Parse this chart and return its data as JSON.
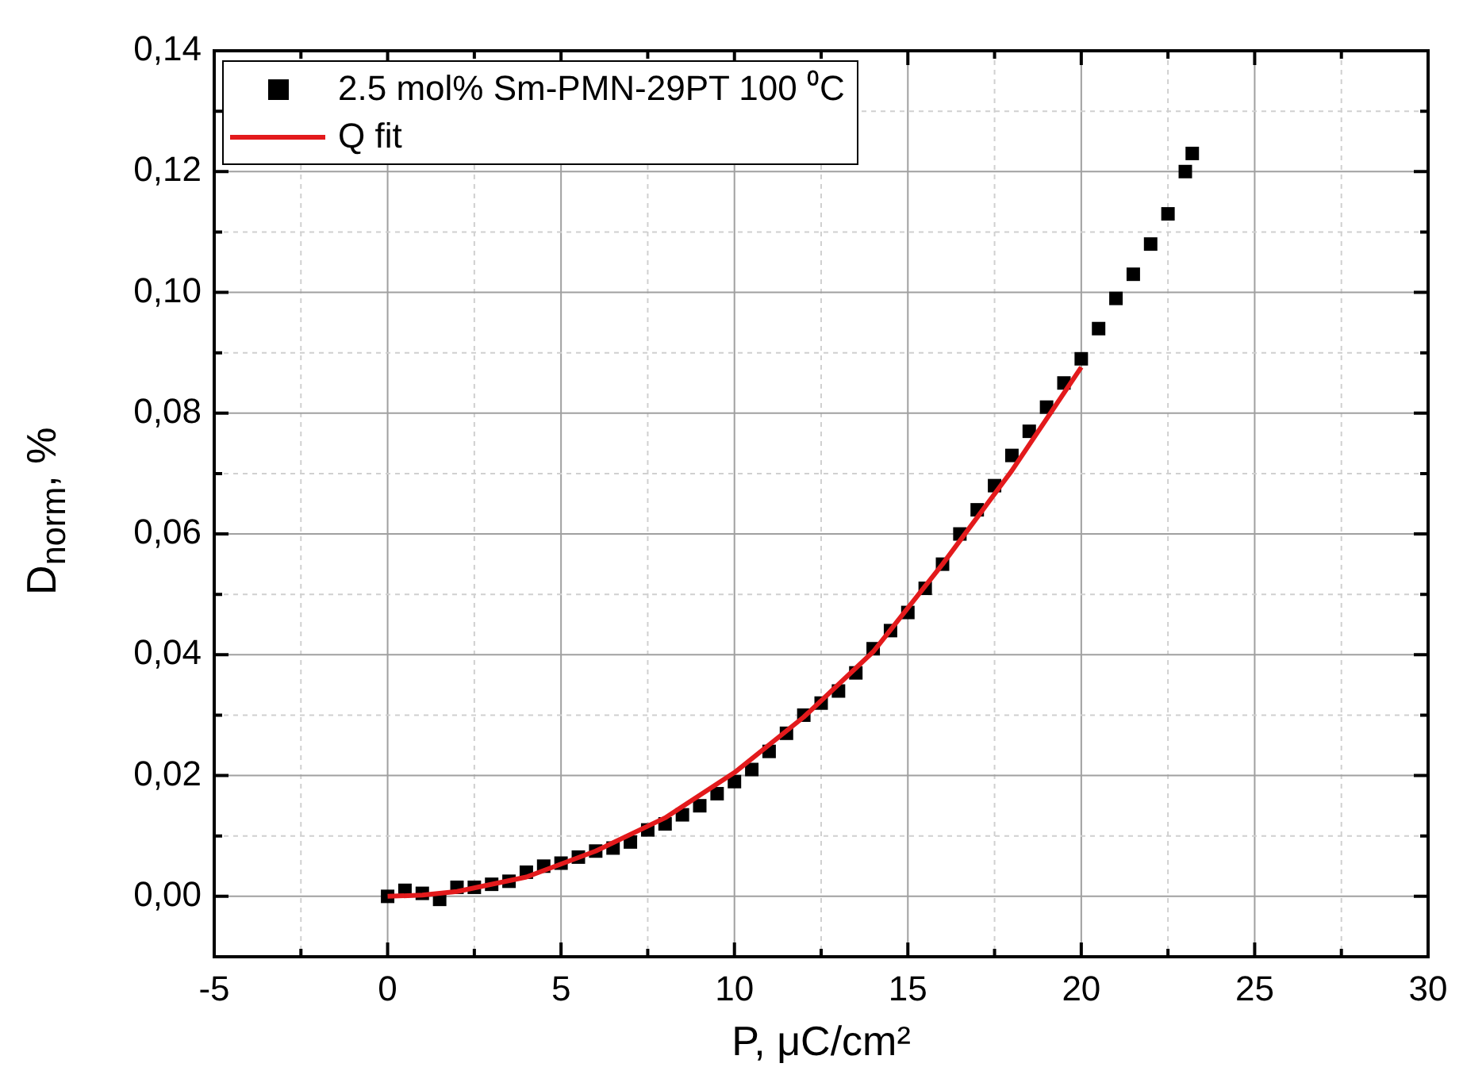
{
  "chart_data": {
    "type": "scatter",
    "xlabel": "P, μC/cm²",
    "ylabel": "D$_{norm}$, %",
    "legend": "top left",
    "grid": true,
    "xlim": [
      -5,
      30
    ],
    "xticks": [
      -5,
      {
        "value": -2.5,
        "label": null
      },
      0,
      {
        "value": 2.5,
        "label": null
      },
      5,
      {
        "value": 7.5,
        "label": null
      },
      10,
      {
        "value": 12.5,
        "label": null
      },
      15,
      {
        "value": 17.5,
        "label": null
      },
      20,
      {
        "value": 22.5,
        "label": null
      },
      25,
      {
        "value": 27.5,
        "label": null
      },
      30
    ],
    "ylim": [
      -0.01,
      0.14
    ],
    "yticks": [
      {
        "value": 0,
        "label": "0,00"
      },
      {
        "value": 0.01,
        "label": null
      },
      {
        "value": 0.02,
        "label": "0,02"
      },
      {
        "value": 0.03,
        "label": null
      },
      {
        "value": 0.04,
        "label": "0,04"
      },
      {
        "value": 0.05,
        "label": null
      },
      {
        "value": 0.06,
        "label": "0,06"
      },
      {
        "value": 0.07,
        "label": null
      },
      {
        "value": 0.08,
        "label": "0,08"
      },
      {
        "value": 0.09,
        "label": null
      },
      {
        "value": 0.1,
        "label": "0,10"
      },
      {
        "value": 0.11,
        "label": null
      },
      {
        "value": 0.12,
        "label": "0,12"
      },
      {
        "value": 0.13,
        "label": null
      },
      {
        "value": 0.14,
        "label": "0,14"
      }
    ],
    "series": [
      {
        "name": "2.5 mol% Sm-PMN-29PT 100 ⁰C",
        "type": "scatter",
        "marker": "square",
        "color": "#000000",
        "x": [
          0,
          0.5,
          1,
          1.5,
          2,
          2.5,
          3,
          3.5,
          4,
          4.5,
          5,
          5.5,
          6,
          6.5,
          7,
          7.5,
          8,
          8.5,
          9,
          9.5,
          10,
          10.5,
          11,
          11.5,
          12,
          12.5,
          13,
          13.5,
          14,
          14.5,
          15,
          15.5,
          16,
          16.5,
          17,
          17.5,
          18,
          18.5,
          19,
          19.5,
          20,
          20.5,
          21,
          21.5,
          22,
          22.5,
          23,
          23.2
        ],
        "values": [
          0,
          0.001,
          0.0005,
          -0.0005,
          0.0015,
          0.0015,
          0.002,
          0.0025,
          0.004,
          0.005,
          0.0055,
          0.0065,
          0.0075,
          0.008,
          0.009,
          0.011,
          0.012,
          0.0135,
          0.015,
          0.017,
          0.019,
          0.021,
          0.024,
          0.027,
          0.03,
          0.032,
          0.034,
          0.037,
          0.041,
          0.044,
          0.047,
          0.051,
          0.055,
          0.06,
          0.064,
          0.068,
          0.073,
          0.077,
          0.081,
          0.085,
          0.089,
          0.094,
          0.099,
          0.103,
          0.108,
          0.113,
          0.12,
          0.123
        ]
      },
      {
        "name": "Q fit",
        "type": "line",
        "marker": "none",
        "color": "#e31a1c",
        "x": [
          0,
          1,
          2,
          4,
          6,
          8,
          10,
          12,
          14,
          16,
          18,
          20
        ],
        "values": [
          0,
          0.0002,
          0.0008,
          0.0032,
          0.0075,
          0.013,
          0.0205,
          0.0297,
          0.0405,
          0.055,
          0.0705,
          0.0876
        ]
      }
    ]
  }
}
